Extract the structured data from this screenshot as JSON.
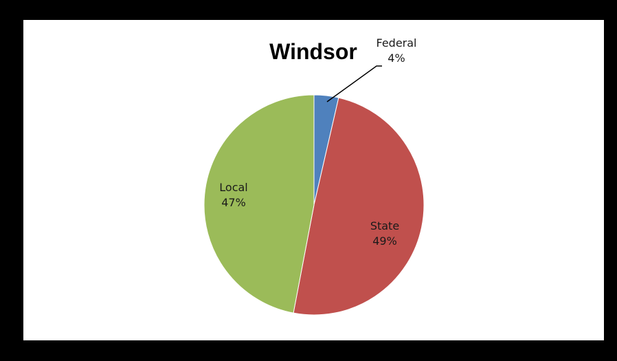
{
  "chart_data": {
    "type": "pie",
    "title": "Windsor",
    "slices": [
      {
        "label": "Federal",
        "percent_label": "4%",
        "value": 3.6,
        "color": "#4f81bd"
      },
      {
        "label": "State",
        "percent_label": "49%",
        "value": 49.4,
        "color": "#c0504d"
      },
      {
        "label": "Local",
        "percent_label": "47%",
        "value": 47.0,
        "color": "#9bbb59"
      }
    ],
    "start_angle_deg": 0,
    "direction": "clockwise",
    "legend": "none"
  }
}
